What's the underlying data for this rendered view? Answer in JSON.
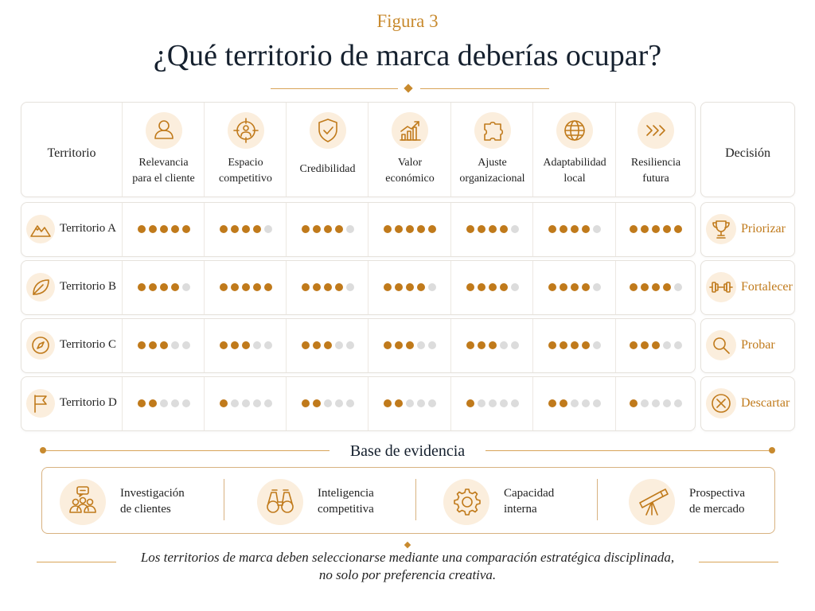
{
  "figure_label": "Figura 3",
  "title": "¿Qué territorio de marca deberías ocupar?",
  "table": {
    "corner_label": "Territorio",
    "decision_header": "Decisión",
    "max_score": 5,
    "criteria": [
      {
        "line1": "Relevancia",
        "line2": "para el cliente",
        "icon": "person-icon"
      },
      {
        "line1": "Espacio",
        "line2": "competitivo",
        "icon": "target-person-icon"
      },
      {
        "line1": "Credibilidad",
        "line2": "",
        "icon": "shield-check-icon"
      },
      {
        "line1": "Valor",
        "line2": "económico",
        "icon": "growth-chart-icon"
      },
      {
        "line1": "Ajuste",
        "line2": "organizacional",
        "icon": "puzzle-icon"
      },
      {
        "line1": "Adaptabilidad",
        "line2": "local",
        "icon": "globe-icon"
      },
      {
        "line1": "Resiliencia",
        "line2": "futura",
        "icon": "chevrons-right-icon"
      }
    ],
    "territories": [
      {
        "name": "Territorio A",
        "icon": "mountains-icon",
        "scores": [
          5,
          4,
          4,
          5,
          4,
          4,
          5
        ],
        "decision": "Priorizar",
        "decision_icon": "trophy-icon"
      },
      {
        "name": "Territorio B",
        "icon": "leaf-icon",
        "scores": [
          4,
          5,
          4,
          4,
          4,
          4,
          4
        ],
        "decision": "Fortalecer",
        "decision_icon": "dumbbell-icon"
      },
      {
        "name": "Territorio C",
        "icon": "compass-icon",
        "scores": [
          3,
          3,
          3,
          3,
          3,
          4,
          3
        ],
        "decision": "Probar",
        "decision_icon": "magnifier-icon"
      },
      {
        "name": "Territorio D",
        "icon": "flag-icon",
        "scores": [
          2,
          1,
          2,
          2,
          1,
          2,
          1
        ],
        "decision": "Descartar",
        "decision_icon": "x-circle-icon"
      }
    ]
  },
  "evidence": {
    "title": "Base de evidencia",
    "items": [
      {
        "line1": "Investigación",
        "line2": "de clientes",
        "icon": "people-speech-icon"
      },
      {
        "line1": "Inteligencia",
        "line2": "competitiva",
        "icon": "binoculars-icon"
      },
      {
        "line1": "Capacidad",
        "line2": "interna",
        "icon": "gear-icon"
      },
      {
        "line1": "Prospectiva",
        "line2": "de mercado",
        "icon": "telescope-icon"
      }
    ]
  },
  "footnote": {
    "line1": "Los territorios de marca deben seleccionarse mediante una comparación estratégica disciplinada,",
    "line2": "no solo por preferencia creativa."
  },
  "colors": {
    "accent": "#c07a1b",
    "accent_light": "#fbeedd",
    "dot_off": "#dcdcdc",
    "title": "#15202e"
  }
}
